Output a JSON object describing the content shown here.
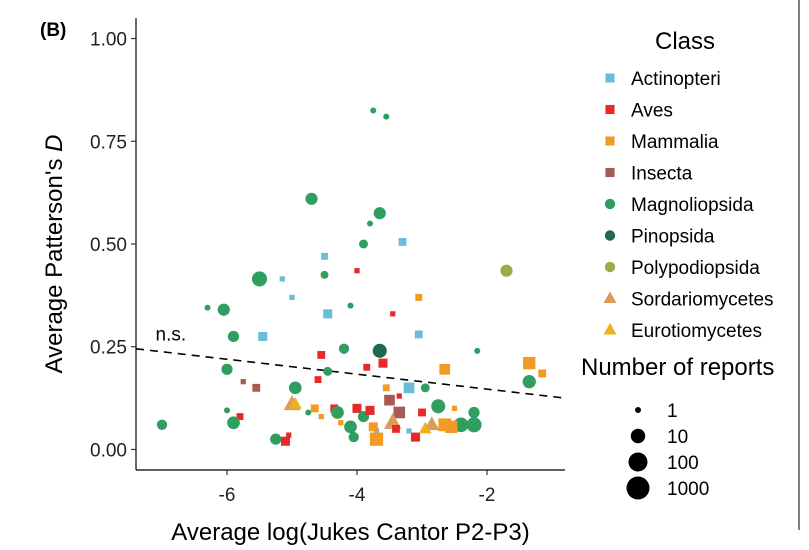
{
  "chart_data": {
    "type": "scatter",
    "panel_label": "(B)",
    "xlabel": "Average log(Jukes Cantor P2-P3)",
    "ylabel_prefix": "Average Patterson's ",
    "ylabel_italic": "D",
    "xlim": [
      -7.4,
      -0.8
    ],
    "ylim": [
      -0.05,
      1.05
    ],
    "x_ticks": [
      -6,
      -4,
      -2
    ],
    "x_tick_labels": [
      "-6",
      "-4",
      "-2"
    ],
    "y_ticks": [
      0.0,
      0.25,
      0.5,
      0.75,
      1.0
    ],
    "y_tick_labels": [
      "0.00",
      "0.25",
      "0.50",
      "0.75",
      "1.00"
    ],
    "grid": false,
    "legend_position": "right",
    "trend_line": {
      "style": "dashed",
      "x": [
        -7.4,
        -0.8
      ],
      "y": [
        0.245,
        0.125
      ],
      "label": "n.s.",
      "label_x": -7.1,
      "label_y": 0.265
    },
    "classes": [
      {
        "name": "Actinopteri",
        "color": "#6bbdd7",
        "marker": "square"
      },
      {
        "name": "Aves",
        "color": "#e8292b",
        "marker": "square"
      },
      {
        "name": "Mammalia",
        "color": "#f39a24",
        "marker": "square"
      },
      {
        "name": "Insecta",
        "color": "#a85b52",
        "marker": "square"
      },
      {
        "name": "Magnoliopsida",
        "color": "#2f9e5f",
        "marker": "circle"
      },
      {
        "name": "Pinopsida",
        "color": "#1e6a4a",
        "marker": "circle"
      },
      {
        "name": "Polypodiopsida",
        "color": "#9aab4a",
        "marker": "circle"
      },
      {
        "name": "Sordariomycetes",
        "color": "#dd9b5a",
        "marker": "triangle"
      },
      {
        "name": "Eurotiomycetes",
        "color": "#edb021",
        "marker": "triangle"
      }
    ],
    "size_legend": {
      "title": "Number of reports",
      "values": [
        1,
        10,
        100,
        1000
      ],
      "labels": [
        "1",
        "10",
        "100",
        "1000"
      ]
    },
    "points": [
      {
        "x": -3.75,
        "y": 0.825,
        "class": "Magnoliopsida",
        "reports": 1
      },
      {
        "x": -3.55,
        "y": 0.81,
        "class": "Magnoliopsida",
        "reports": 1
      },
      {
        "x": -4.7,
        "y": 0.61,
        "class": "Magnoliopsida",
        "reports": 10
      },
      {
        "x": -3.65,
        "y": 0.575,
        "class": "Magnoliopsida",
        "reports": 10
      },
      {
        "x": -3.8,
        "y": 0.55,
        "class": "Magnoliopsida",
        "reports": 1
      },
      {
        "x": -3.9,
        "y": 0.5,
        "class": "Magnoliopsida",
        "reports": 3
      },
      {
        "x": -3.3,
        "y": 0.505,
        "class": "Actinopteri",
        "reports": 3
      },
      {
        "x": -4.5,
        "y": 0.47,
        "class": "Actinopteri",
        "reports": 2
      },
      {
        "x": -4.5,
        "y": 0.425,
        "class": "Magnoliopsida",
        "reports": 2
      },
      {
        "x": -5.5,
        "y": 0.415,
        "class": "Magnoliopsida",
        "reports": 30
      },
      {
        "x": -5.15,
        "y": 0.415,
        "class": "Actinopteri",
        "reports": 1
      },
      {
        "x": -1.7,
        "y": 0.435,
        "class": "Polypodiopsida",
        "reports": 10
      },
      {
        "x": -4.0,
        "y": 0.435,
        "class": "Aves",
        "reports": 1
      },
      {
        "x": -5.0,
        "y": 0.37,
        "class": "Actinopteri",
        "reports": 1
      },
      {
        "x": -3.05,
        "y": 0.37,
        "class": "Mammalia",
        "reports": 2
      },
      {
        "x": -6.05,
        "y": 0.34,
        "class": "Magnoliopsida",
        "reports": 10
      },
      {
        "x": -6.3,
        "y": 0.345,
        "class": "Magnoliopsida",
        "reports": 1
      },
      {
        "x": -4.45,
        "y": 0.33,
        "class": "Actinopteri",
        "reports": 5
      },
      {
        "x": -4.1,
        "y": 0.35,
        "class": "Magnoliopsida",
        "reports": 1
      },
      {
        "x": -3.45,
        "y": 0.33,
        "class": "Aves",
        "reports": 1
      },
      {
        "x": -5.9,
        "y": 0.275,
        "class": "Magnoliopsida",
        "reports": 7
      },
      {
        "x": -5.45,
        "y": 0.275,
        "class": "Actinopteri",
        "reports": 5
      },
      {
        "x": -4.2,
        "y": 0.245,
        "class": "Magnoliopsida",
        "reports": 5
      },
      {
        "x": -3.05,
        "y": 0.28,
        "class": "Actinopteri",
        "reports": 3
      },
      {
        "x": -3.65,
        "y": 0.24,
        "class": "Pinopsida",
        "reports": 20
      },
      {
        "x": -3.6,
        "y": 0.21,
        "class": "Aves",
        "reports": 5
      },
      {
        "x": -4.55,
        "y": 0.23,
        "class": "Aves",
        "reports": 3
      },
      {
        "x": -2.15,
        "y": 0.24,
        "class": "Magnoliopsida",
        "reports": 1
      },
      {
        "x": -6.0,
        "y": 0.195,
        "class": "Magnoliopsida",
        "reports": 7
      },
      {
        "x": -4.45,
        "y": 0.19,
        "class": "Magnoliopsida",
        "reports": 3
      },
      {
        "x": -3.85,
        "y": 0.2,
        "class": "Aves",
        "reports": 2
      },
      {
        "x": -2.65,
        "y": 0.195,
        "class": "Mammalia",
        "reports": 10
      },
      {
        "x": -1.35,
        "y": 0.21,
        "class": "Mammalia",
        "reports": 20
      },
      {
        "x": -5.55,
        "y": 0.15,
        "class": "Insecta",
        "reports": 3
      },
      {
        "x": -4.95,
        "y": 0.15,
        "class": "Magnoliopsida",
        "reports": 12
      },
      {
        "x": -4.6,
        "y": 0.17,
        "class": "Aves",
        "reports": 2
      },
      {
        "x": -3.2,
        "y": 0.15,
        "class": "Actinopteri",
        "reports": 10
      },
      {
        "x": -3.35,
        "y": 0.13,
        "class": "Aves",
        "reports": 1
      },
      {
        "x": -3.55,
        "y": 0.15,
        "class": "Mammalia",
        "reports": 2
      },
      {
        "x": -2.95,
        "y": 0.15,
        "class": "Magnoliopsida",
        "reports": 3
      },
      {
        "x": -1.35,
        "y": 0.165,
        "class": "Magnoliopsida",
        "reports": 15
      },
      {
        "x": -1.15,
        "y": 0.185,
        "class": "Mammalia",
        "reports": 3
      },
      {
        "x": -5.75,
        "y": 0.165,
        "class": "Insecta",
        "reports": 1
      },
      {
        "x": -5.0,
        "y": 0.11,
        "class": "Sordariomycetes",
        "reports": 15
      },
      {
        "x": -4.95,
        "y": 0.11,
        "class": "Eurotiomycetes",
        "reports": 5
      },
      {
        "x": -4.65,
        "y": 0.1,
        "class": "Mammalia",
        "reports": 3
      },
      {
        "x": -4.35,
        "y": 0.1,
        "class": "Aves",
        "reports": 3
      },
      {
        "x": -4.0,
        "y": 0.1,
        "class": "Aves",
        "reports": 5
      },
      {
        "x": -3.9,
        "y": 0.08,
        "class": "Magnoliopsida",
        "reports": 7
      },
      {
        "x": -3.8,
        "y": 0.095,
        "class": "Aves",
        "reports": 5
      },
      {
        "x": -3.5,
        "y": 0.12,
        "class": "Insecta",
        "reports": 10
      },
      {
        "x": -3.35,
        "y": 0.09,
        "class": "Insecta",
        "reports": 15
      },
      {
        "x": -3.0,
        "y": 0.09,
        "class": "Aves",
        "reports": 3
      },
      {
        "x": -2.75,
        "y": 0.105,
        "class": "Magnoliopsida",
        "reports": 20
      },
      {
        "x": -2.5,
        "y": 0.1,
        "class": "Mammalia",
        "reports": 1
      },
      {
        "x": -2.2,
        "y": 0.09,
        "class": "Magnoliopsida",
        "reports": 7
      },
      {
        "x": -2.4,
        "y": 0.06,
        "class": "Magnoliopsida",
        "reports": 25
      },
      {
        "x": -2.65,
        "y": 0.06,
        "class": "Mammalia",
        "reports": 25
      },
      {
        "x": -2.85,
        "y": 0.06,
        "class": "Sordariomycetes",
        "reports": 10
      },
      {
        "x": -3.45,
        "y": 0.065,
        "class": "Sordariomycetes",
        "reports": 20
      },
      {
        "x": -3.7,
        "y": 0.045,
        "class": "Actinopteri",
        "reports": 1
      },
      {
        "x": -4.3,
        "y": 0.09,
        "class": "Magnoliopsida",
        "reports": 12
      },
      {
        "x": -4.55,
        "y": 0.08,
        "class": "Mammalia",
        "reports": 1
      },
      {
        "x": -4.75,
        "y": 0.09,
        "class": "Magnoliopsida",
        "reports": 1
      },
      {
        "x": -5.8,
        "y": 0.08,
        "class": "Aves",
        "reports": 2
      },
      {
        "x": -6.0,
        "y": 0.095,
        "class": "Magnoliopsida",
        "reports": 1
      },
      {
        "x": -5.9,
        "y": 0.065,
        "class": "Magnoliopsida",
        "reports": 12
      },
      {
        "x": -7.0,
        "y": 0.06,
        "class": "Magnoliopsida",
        "reports": 5
      },
      {
        "x": -5.25,
        "y": 0.025,
        "class": "Magnoliopsida",
        "reports": 7
      },
      {
        "x": -5.05,
        "y": 0.035,
        "class": "Aves",
        "reports": 1
      },
      {
        "x": -5.1,
        "y": 0.02,
        "class": "Aves",
        "reports": 5
      },
      {
        "x": -4.25,
        "y": 0.065,
        "class": "Mammalia",
        "reports": 1
      },
      {
        "x": -4.1,
        "y": 0.055,
        "class": "Magnoliopsida",
        "reports": 12
      },
      {
        "x": -4.05,
        "y": 0.03,
        "class": "Magnoliopsida",
        "reports": 5
      },
      {
        "x": -3.7,
        "y": 0.025,
        "class": "Mammalia",
        "reports": 30
      },
      {
        "x": -3.75,
        "y": 0.055,
        "class": "Mammalia",
        "reports": 5
      },
      {
        "x": -3.4,
        "y": 0.05,
        "class": "Aves",
        "reports": 3
      },
      {
        "x": -3.1,
        "y": 0.03,
        "class": "Aves",
        "reports": 5
      },
      {
        "x": -2.95,
        "y": 0.05,
        "class": "Eurotiomycetes",
        "reports": 5
      },
      {
        "x": -2.2,
        "y": 0.06,
        "class": "Magnoliopsida",
        "reports": 30
      },
      {
        "x": -2.55,
        "y": 0.055,
        "class": "Mammalia",
        "reports": 20
      },
      {
        "x": -3.2,
        "y": 0.045,
        "class": "Actinopteri",
        "reports": 1
      }
    ]
  }
}
